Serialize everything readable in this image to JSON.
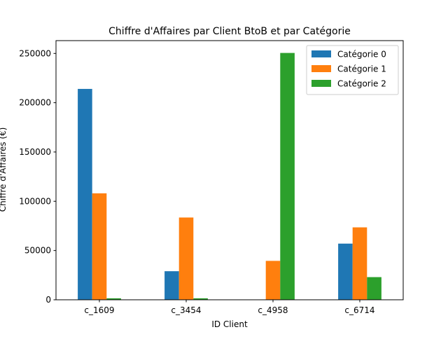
{
  "chart_data": {
    "type": "bar",
    "title": "Chiffre d'Affaires par Client BtoB et par Catégorie",
    "xlabel": "ID Client",
    "ylabel": "Chiffre d'Affaires (€)",
    "categories": [
      "c_1609",
      "c_3454",
      "c_4958",
      "c_6714"
    ],
    "series": [
      {
        "name": "Catégorie 0",
        "color": "#1f77b4",
        "values": [
          214000,
          29000,
          0,
          57000
        ]
      },
      {
        "name": "Catégorie 1",
        "color": "#ff7f0e",
        "values": [
          108000,
          83500,
          39500,
          73500
        ]
      },
      {
        "name": "Catégorie 2",
        "color": "#2ca02c",
        "values": [
          1500,
          1500,
          250500,
          23000
        ]
      }
    ],
    "ylim": [
      0,
      263000
    ],
    "yticks": [
      0,
      50000,
      100000,
      150000,
      200000,
      250000
    ],
    "ytick_labels": [
      "0",
      "50000",
      "100000",
      "150000",
      "200000",
      "250000"
    ],
    "grid": false,
    "legend_position": "top-right"
  }
}
